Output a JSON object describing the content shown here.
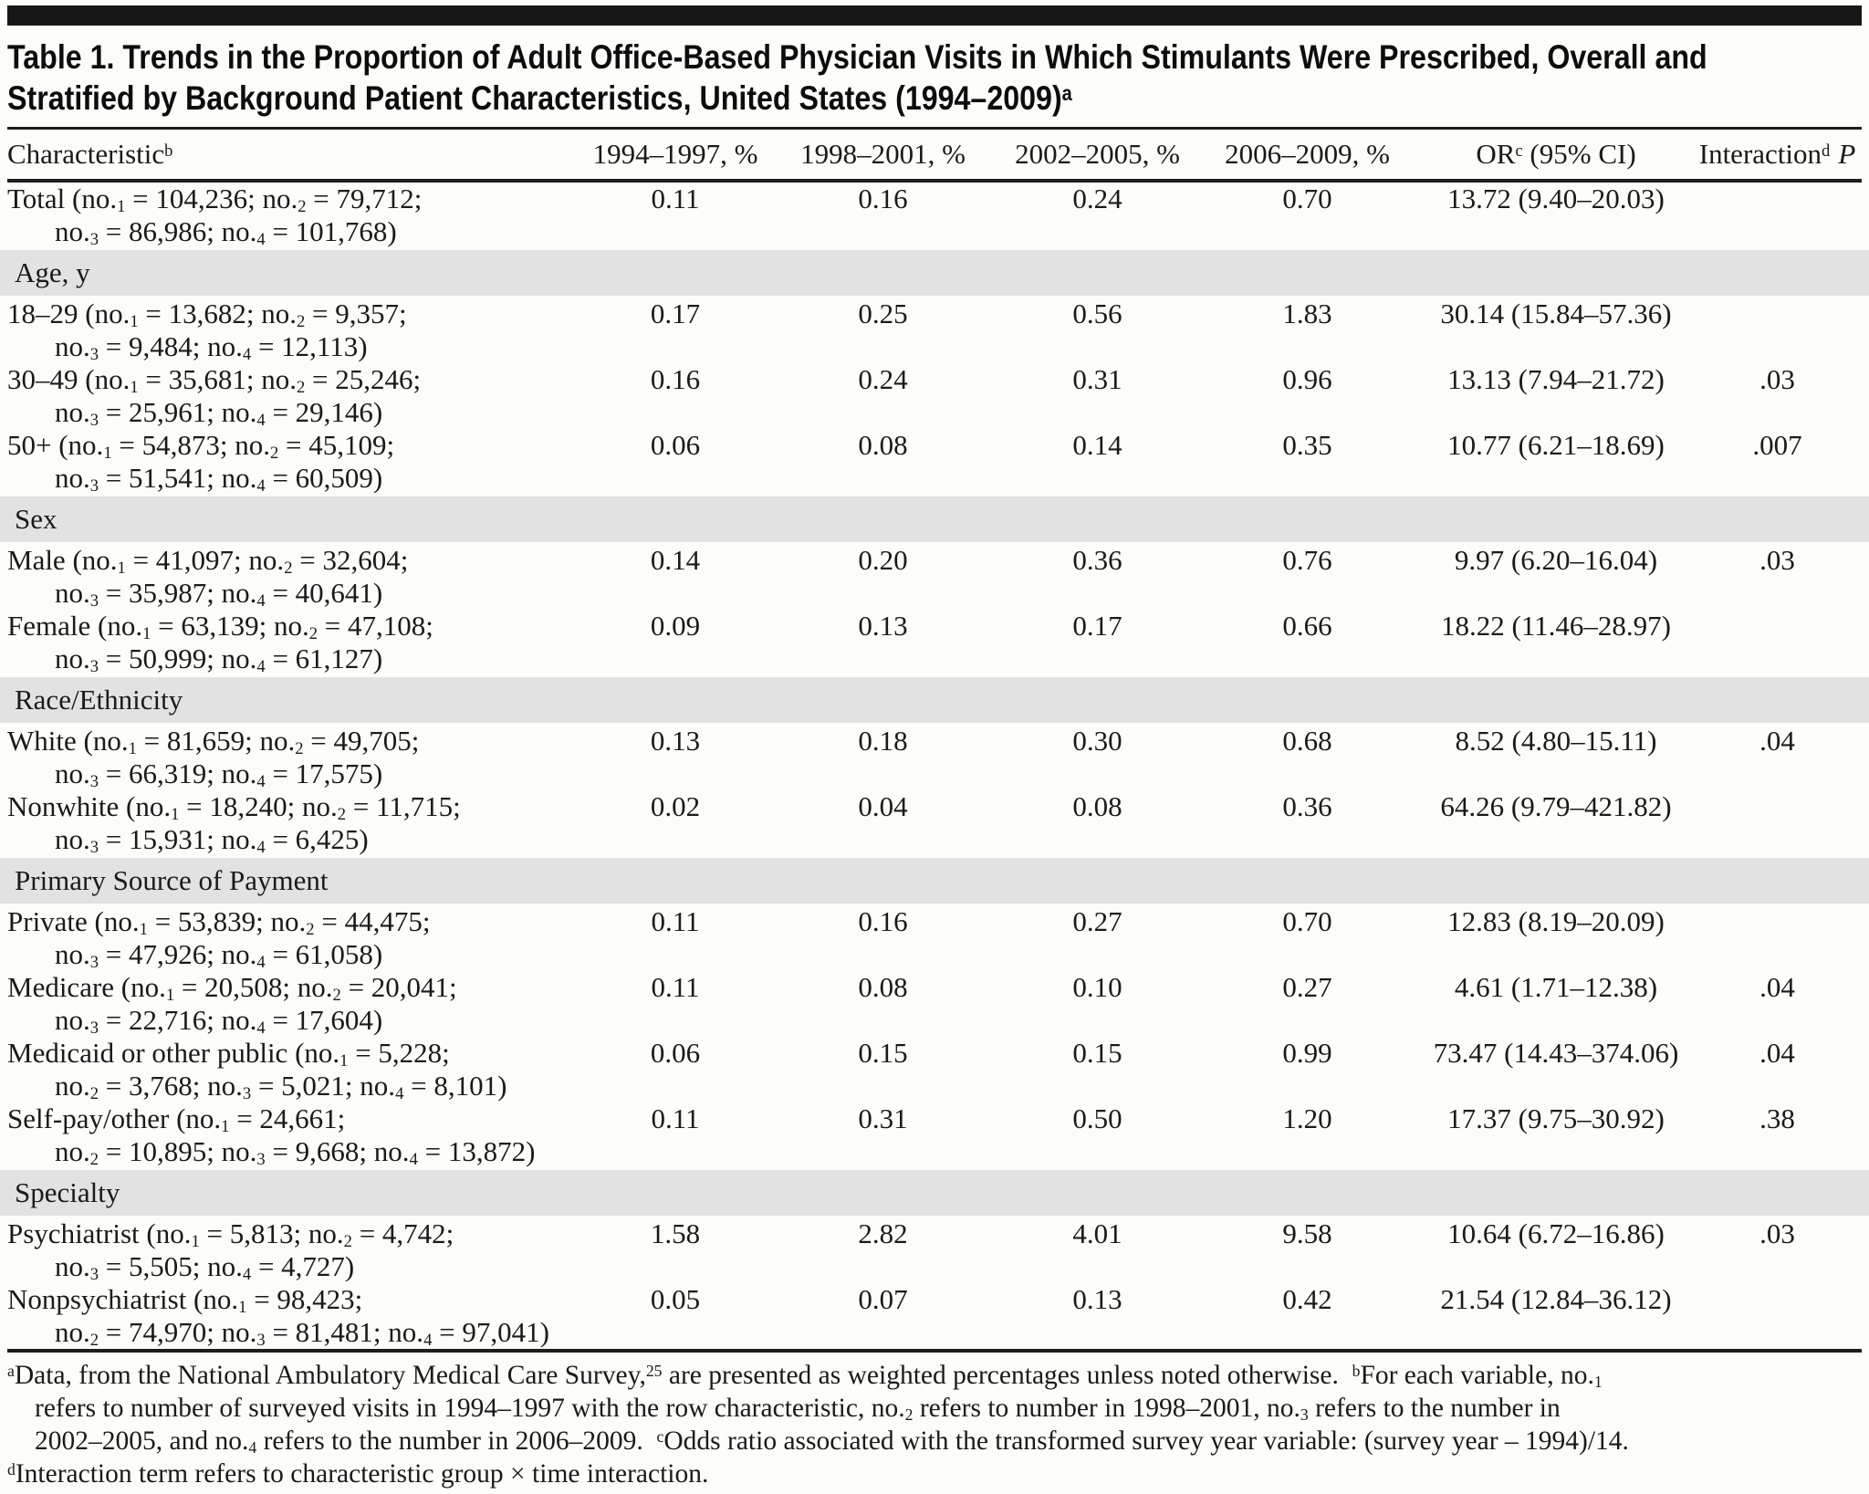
{
  "title": {
    "line1": "Table 1. Trends in the Proportion of Adult Office-Based Physician Visits in Which Stimulants Were Prescribed, Overall and",
    "line2": "Stratified by Background Patient Characteristics, United States (1994–2009)",
    "line2_sup": "a"
  },
  "table": {
    "columns": [
      {
        "text": "Characteristic",
        "sup": "b"
      },
      {
        "text": "1994–1997, %"
      },
      {
        "text": "1998–2001, %"
      },
      {
        "text": "2002–2005, %"
      },
      {
        "text": "2006–2009, %"
      },
      {
        "text": "OR",
        "sup": "c",
        "post": " (95% CI)"
      },
      {
        "text": "Interaction",
        "sup": "d",
        "post_italic": "P"
      }
    ],
    "rows": [
      {
        "type": "data",
        "label1": "Total (no.1 = 104,236; no.2 = 79,712;",
        "label2": "no.3 = 86,986; no.4 = 101,768)",
        "values": [
          "0.11",
          "0.16",
          "0.24",
          "0.70",
          "13.72 (9.40–20.03)",
          ""
        ]
      },
      {
        "type": "section",
        "label": "Age, y"
      },
      {
        "type": "data",
        "label1": "18–29 (no.1 = 13,682; no.2 = 9,357;",
        "label2": "no.3 = 9,484; no.4 = 12,113)",
        "values": [
          "0.17",
          "0.25",
          "0.56",
          "1.83",
          "30.14 (15.84–57.36)",
          ""
        ]
      },
      {
        "type": "data",
        "label1": "30–49 (no.1 = 35,681; no.2 = 25,246;",
        "label2": "no.3 = 25,961; no.4 = 29,146)",
        "values": [
          "0.16",
          "0.24",
          "0.31",
          "0.96",
          "13.13 (7.94–21.72)",
          ".03"
        ]
      },
      {
        "type": "data",
        "label1": "50+ (no.1 = 54,873; no.2 = 45,109;",
        "label2": "no.3 = 51,541; no.4 = 60,509)",
        "values": [
          "0.06",
          "0.08",
          "0.14",
          "0.35",
          "10.77 (6.21–18.69)",
          ".007"
        ]
      },
      {
        "type": "section",
        "label": "Sex"
      },
      {
        "type": "data",
        "label1": "Male (no.1 = 41,097; no.2 = 32,604;",
        "label2": "no.3 = 35,987; no.4 = 40,641)",
        "values": [
          "0.14",
          "0.20",
          "0.36",
          "0.76",
          "9.97 (6.20–16.04)",
          ".03"
        ]
      },
      {
        "type": "data",
        "label1": "Female (no.1 = 63,139; no.2 = 47,108;",
        "label2": "no.3 = 50,999; no.4 = 61,127)",
        "values": [
          "0.09",
          "0.13",
          "0.17",
          "0.66",
          "18.22 (11.46–28.97)",
          ""
        ]
      },
      {
        "type": "section",
        "label": "Race/Ethnicity"
      },
      {
        "type": "data",
        "label1": "White (no.1 = 81,659; no.2 = 49,705;",
        "label2": "no.3 = 66,319; no.4 = 17,575)",
        "values": [
          "0.13",
          "0.18",
          "0.30",
          "0.68",
          "8.52 (4.80–15.11)",
          ".04"
        ]
      },
      {
        "type": "data",
        "label1": "Nonwhite (no.1 = 18,240; no.2 = 11,715;",
        "label2": "no.3 = 15,931; no.4 = 6,425)",
        "values": [
          "0.02",
          "0.04",
          "0.08",
          "0.36",
          "64.26 (9.79–421.82)",
          ""
        ]
      },
      {
        "type": "section",
        "label": "Primary Source of Payment"
      },
      {
        "type": "data",
        "label1": "Private (no.1 = 53,839; no.2 = 44,475;",
        "label2": "no.3 = 47,926; no.4 = 61,058)",
        "values": [
          "0.11",
          "0.16",
          "0.27",
          "0.70",
          "12.83 (8.19–20.09)",
          ""
        ]
      },
      {
        "type": "data",
        "label1": "Medicare (no.1 = 20,508; no.2 = 20,041;",
        "label2": "no.3 = 22,716; no.4 = 17,604)",
        "values": [
          "0.11",
          "0.08",
          "0.10",
          "0.27",
          "4.61 (1.71–12.38)",
          ".04"
        ]
      },
      {
        "type": "data",
        "label1": "Medicaid or other public (no.1 = 5,228;",
        "label2": "no.2 = 3,768; no.3 = 5,021; no.4 = 8,101)",
        "values": [
          "0.06",
          "0.15",
          "0.15",
          "0.99",
          "73.47 (14.43–374.06)",
          ".04"
        ]
      },
      {
        "type": "data",
        "label1": "Self-pay/other (no.1 = 24,661;",
        "label2": "no.2 = 10,895; no.3 = 9,668; no.4 = 13,872)",
        "values": [
          "0.11",
          "0.31",
          "0.50",
          "1.20",
          "17.37 (9.75–30.92)",
          ".38"
        ]
      },
      {
        "type": "section",
        "label": "Specialty"
      },
      {
        "type": "data",
        "label1": "Psychiatrist (no.1 = 5,813; no.2 = 4,742;",
        "label2": "no.3 = 5,505; no.4 = 4,727)",
        "values": [
          "1.58",
          "2.82",
          "4.01",
          "9.58",
          "10.64 (6.72–16.86)",
          ".03"
        ]
      },
      {
        "type": "data",
        "label1": "Nonpsychiatrist (no.1 = 98,423;",
        "label2": "no.2 = 74,970; no.3 = 81,481; no.4 = 97,041)",
        "values": [
          "0.05",
          "0.07",
          "0.13",
          "0.42",
          "21.54 (12.84–36.12)",
          ""
        ]
      }
    ]
  },
  "footnotes": {
    "lines": [
      {
        "indent": false,
        "segments": [
          {
            "sup": "a"
          },
          {
            "t": "Data, from the National Ambulatory Medical Care Survey,"
          },
          {
            "sup": "25"
          },
          {
            "t": " are presented as weighted percentages unless noted otherwise.  "
          },
          {
            "sup": "b"
          },
          {
            "t": "For each variable, no."
          },
          {
            "sub": "1"
          }
        ]
      },
      {
        "indent": true,
        "segments": [
          {
            "t": "refers to number of surveyed visits in 1994–1997 with the row characteristic, no."
          },
          {
            "sub": "2"
          },
          {
            "t": " refers to number in 1998–2001, no."
          },
          {
            "sub": "3"
          },
          {
            "t": " refers to the number in"
          }
        ]
      },
      {
        "indent": true,
        "segments": [
          {
            "t": "2002–2005, and no."
          },
          {
            "sub": "4"
          },
          {
            "t": " refers to the number in 2006–2009.  "
          },
          {
            "sup": "c"
          },
          {
            "t": "Odds ratio associated with the transformed survey year variable: (survey year – 1994)/14."
          }
        ]
      },
      {
        "indent": false,
        "segments": [
          {
            "sup": "d"
          },
          {
            "t": "Interaction term refers to characteristic group × time interaction."
          }
        ]
      }
    ]
  }
}
